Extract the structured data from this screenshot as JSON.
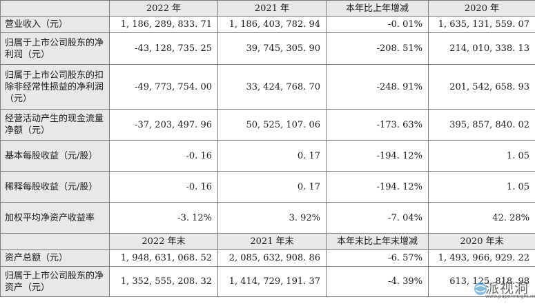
{
  "header1": [
    "2022 年",
    "2021 年",
    "本年比上年增减",
    "2020 年"
  ],
  "rows1": [
    {
      "label": "营业收入（元）",
      "values": [
        "1, 186, 289, 833. 71",
        "1, 186, 403, 782. 94",
        "-0. 01%",
        "1, 635, 131, 559. 07"
      ]
    },
    {
      "label": "归属于上市公司股东的净利润（元）",
      "values": [
        "-43, 128, 735. 25",
        "39, 745, 305. 90",
        "-208. 51%",
        "214, 010, 338. 13"
      ]
    },
    {
      "label": "归属于上市公司股东的扣除非经常性损益的净利润（元）",
      "values": [
        "-49, 773, 754. 00",
        "33, 424, 768. 70",
        "-248. 91%",
        "201, 542, 658. 93"
      ]
    },
    {
      "label": "经营活动产生的现金流量净额（元）",
      "values": [
        "-37, 203, 497. 96",
        "50, 525, 107. 06",
        "-173. 63%",
        "395, 857, 840. 02"
      ]
    },
    {
      "label": "基本每股收益（元/股）",
      "values": [
        "-0. 16",
        "0. 17",
        "-194. 12%",
        "1. 05"
      ]
    },
    {
      "label": "稀释每股收益（元/股）",
      "values": [
        "-0. 16",
        "0. 17",
        "-194. 12%",
        "1. 05"
      ]
    },
    {
      "label": "加权平均净资产收益率",
      "values": [
        "-3. 12%",
        "3. 92%",
        "-7. 04%",
        "42. 28%"
      ]
    }
  ],
  "header2": [
    "2022 年末",
    "2021 年末",
    "本年末比上年末增减",
    "2020 年末"
  ],
  "rows2": [
    {
      "label": "资产总额（元）",
      "values": [
        "1, 948, 631, 068. 52",
        "2, 085, 632, 908. 86",
        "-6. 57%",
        "1, 493, 966, 929. 22"
      ]
    },
    {
      "label": "归属于上市公司股东的净资产（元）",
      "values": [
        "1, 352, 555, 208. 32",
        "1, 414, 729, 191. 37",
        "-4. 39%",
        "613, 125, 818. 98"
      ]
    }
  ],
  "watermark": {
    "text": "派视洞",
    "url": "www.paperinsight.net"
  }
}
